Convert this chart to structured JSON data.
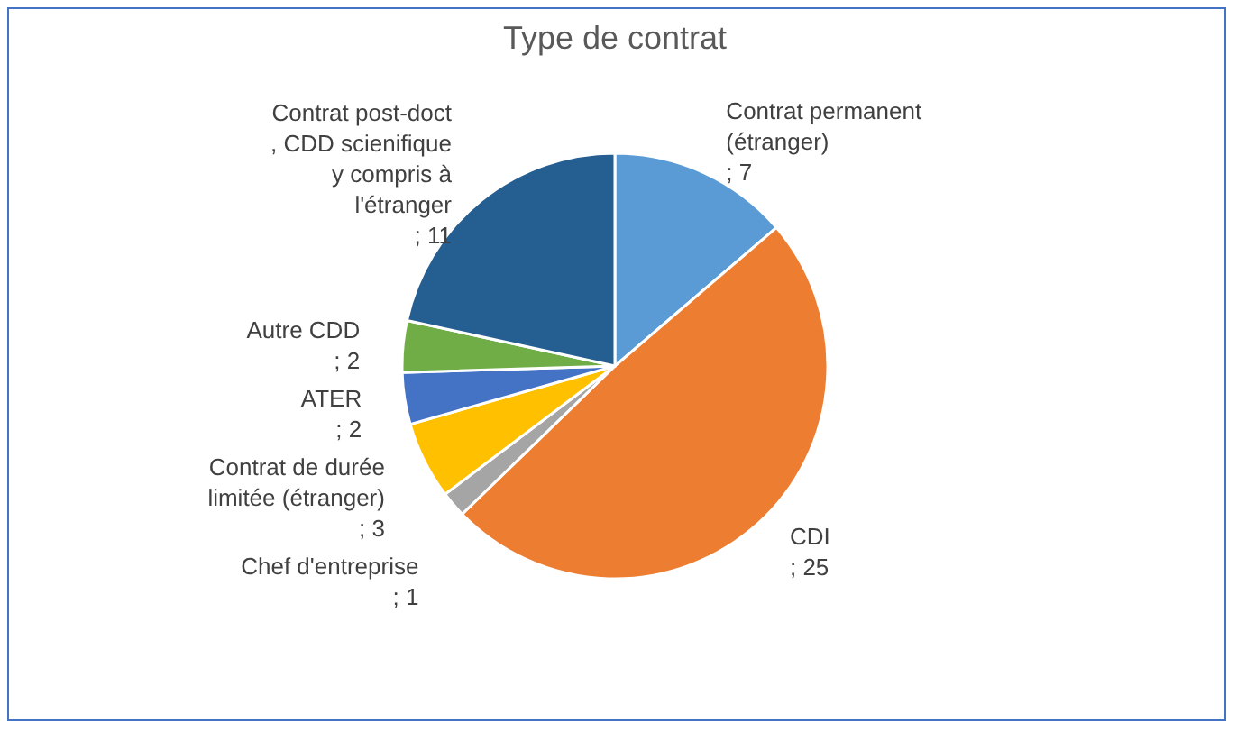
{
  "chart_data": {
    "type": "pie",
    "title": "Type de contrat",
    "categories": [
      "Contrat permanent (étranger)",
      "CDI",
      "Chef d'entreprise",
      "Contrat de durée limitée (étranger)",
      "ATER",
      "Autre CDD",
      "Contrat post-doct , CDD scienifique y compris à l'étranger"
    ],
    "values": [
      7,
      25,
      1,
      3,
      2,
      2,
      11
    ],
    "colors": [
      "#5b9bd5",
      "#ed7d31",
      "#a5a5a5",
      "#ffc000",
      "#4472c4",
      "#70ad47",
      "#255e91"
    ],
    "value_labels": [
      "; 7",
      "; 25",
      "; 1",
      "; 3",
      "; 2",
      "; 2",
      "; 11"
    ]
  }
}
